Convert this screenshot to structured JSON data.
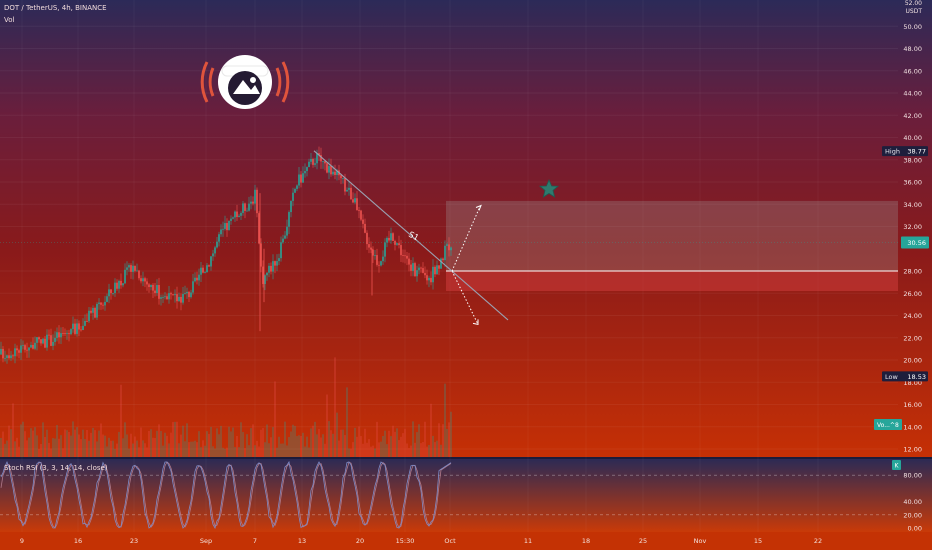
{
  "header": {
    "symbol_line": "DOT / TetherUS, 4h, BINANCE",
    "volume_label": "Vol",
    "currency": "USDT"
  },
  "price_axis": {
    "ticks": [
      "50.00",
      "48.00",
      "46.00",
      "44.00",
      "42.00",
      "40.00",
      "38.00",
      "36.00",
      "34.00",
      "32.00",
      "28.00",
      "26.00",
      "24.00",
      "22.00",
      "20.00",
      "18.00",
      "16.00",
      "14.00",
      "12.00"
    ],
    "top_partial": "52.00"
  },
  "price_tags": {
    "high_label": "High",
    "high_value": "38.77",
    "low_label": "Low",
    "low_value": "18.53",
    "last_value": "30.56",
    "volume_tag": "Vo...^8"
  },
  "annotation": {
    "wave_label": "S1"
  },
  "stoch": {
    "title": "Stoch RSI (3, 3, 14, 14, close)",
    "ticks": [
      "80.00",
      "40.00",
      "20.00",
      "0.00"
    ],
    "badge": "K"
  },
  "time_axis": {
    "ticks": [
      "9",
      "16",
      "23",
      "Sep",
      "7",
      "13",
      "20",
      "15:30",
      "Oct",
      "11",
      "18",
      "25",
      "Nov",
      "15",
      "22"
    ]
  },
  "colors": {
    "up": "#26a69a",
    "down": "#ef5350",
    "bg_top": "#2a2a5a",
    "bg_bottom": "#c22a05",
    "zone_target": "#9a9a9a",
    "zone_stop": "#c44040"
  },
  "chart_data": {
    "type": "candlestick",
    "x_ticks": [
      "9",
      "16",
      "23",
      "Sep",
      "7",
      "13",
      "20",
      "15:30",
      "Oct",
      "11",
      "18",
      "25",
      "Nov",
      "15",
      "22"
    ],
    "ylim": [
      12,
      52
    ],
    "high": 38.77,
    "low": 18.53,
    "last": 30.56,
    "close_path": [
      {
        "t": "9",
        "close": 20.5
      },
      {
        "t": "12",
        "close": 21.8
      },
      {
        "t": "16",
        "close": 22.9
      },
      {
        "t": "19",
        "close": 24.8
      },
      {
        "t": "21",
        "close": 27.0
      },
      {
        "t": "23",
        "close": 28.4
      },
      {
        "t": "26",
        "close": 26.6
      },
      {
        "t": "28",
        "close": 25.4
      },
      {
        "t": "30",
        "close": 25.9
      },
      {
        "t": "Sep",
        "close": 28.4
      },
      {
        "t": "3",
        "close": 31.5
      },
      {
        "t": "5",
        "close": 33.3
      },
      {
        "t": "7",
        "close": 34.8
      },
      {
        "t": "8",
        "close": 27.2
      },
      {
        "t": "10",
        "close": 29.6
      },
      {
        "t": "12",
        "close": 35.8
      },
      {
        "t": "13",
        "close": 38.3
      },
      {
        "t": "15",
        "close": 36.7
      },
      {
        "t": "17",
        "close": 34.8
      },
      {
        "t": "19",
        "close": 31.3
      },
      {
        "t": "20",
        "close": 28.8
      },
      {
        "t": "22",
        "close": 31.4
      },
      {
        "t": "24",
        "close": 28.3
      },
      {
        "t": "27",
        "close": 27.3
      },
      {
        "t": "Oct",
        "close": 30.56
      }
    ],
    "trendline": {
      "start": {
        "t": "13",
        "price": 38.8
      },
      "end": {
        "t": "Oct +2",
        "price": 23.6
      }
    },
    "projection_up": {
      "from": 28.0,
      "to": 33.8
    },
    "projection_down": {
      "from": 28.0,
      "to": 23.2
    },
    "zones": {
      "target": [
        28.0,
        34.3
      ],
      "stop": [
        26.2,
        28.0
      ],
      "entry": 28.0
    },
    "stoch_rsi": {
      "levels": [
        80,
        20
      ],
      "ylim": [
        0,
        100
      ]
    }
  }
}
